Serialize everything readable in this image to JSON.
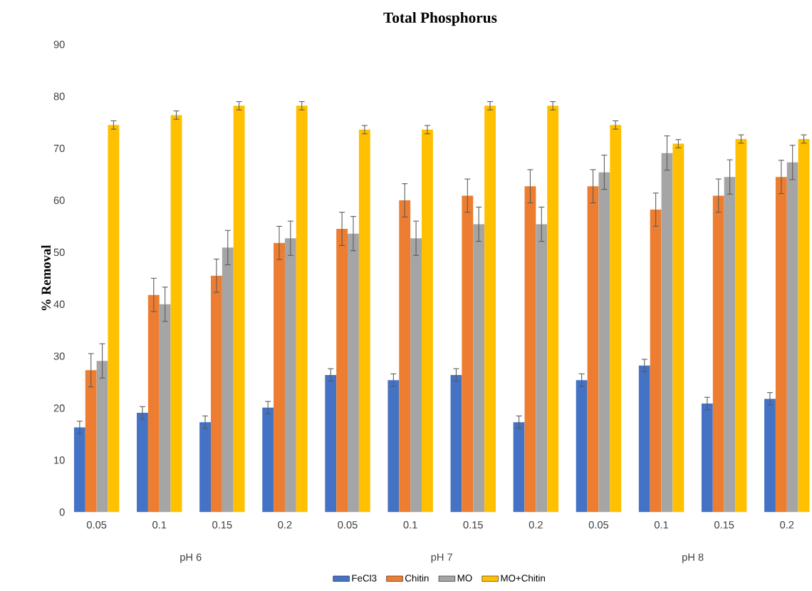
{
  "chart_data": {
    "type": "bar",
    "title": "Total Phosphorus",
    "ylabel": "% Removal",
    "categories": [
      "0.05",
      "0.1",
      "0.15",
      "0.2",
      "0.05",
      "0.1",
      "0.15",
      "0.2",
      "0.05",
      "0.1",
      "0.15",
      "0.2"
    ],
    "annotations": [
      "pH 6",
      "pH 7",
      "pH 8"
    ],
    "series": [
      {
        "name": "FeCl3",
        "color": "#4472c4",
        "values": [
          16.3,
          19.1,
          17.3,
          20.1,
          26.4,
          25.4,
          26.4,
          17.3,
          25.4,
          28.2,
          20.9,
          21.8
        ],
        "errors": [
          1.2,
          1.2,
          1.2,
          1.2,
          1.2,
          1.2,
          1.2,
          1.2,
          1.2,
          1.2,
          1.2,
          1.2
        ]
      },
      {
        "name": "Chitin",
        "color": "#ed7d31",
        "values": [
          27.3,
          41.8,
          45.5,
          51.8,
          54.5,
          60,
          60.9,
          62.7,
          62.7,
          58.2,
          60.9,
          64.5
        ],
        "errors": [
          3.2,
          3.2,
          3.2,
          3.2,
          3.2,
          3.2,
          3.2,
          3.2,
          3.2,
          3.2,
          3.2,
          3.2
        ]
      },
      {
        "name": "MO",
        "color": "#a5a5a5",
        "values": [
          29.1,
          40,
          50.9,
          52.7,
          53.6,
          52.7,
          55.4,
          55.4,
          65.4,
          69.1,
          64.5,
          67.3
        ],
        "errors": [
          3.3,
          3.3,
          3.3,
          3.3,
          3.3,
          3.3,
          3.3,
          3.3,
          3.3,
          3.3,
          3.3,
          3.3
        ]
      },
      {
        "name": "MO+Chitin",
        "color": "#ffc000",
        "values": [
          74.5,
          76.4,
          78.2,
          78.2,
          73.6,
          73.6,
          78.2,
          78.2,
          74.5,
          70.9,
          71.8,
          71.8
        ],
        "errors": [
          0.8,
          0.8,
          0.8,
          0.8,
          0.8,
          0.8,
          0.8,
          0.8,
          0.8,
          0.8,
          0.8,
          0.8
        ]
      }
    ],
    "ylim": [
      0,
      90
    ],
    "yticks": [
      0,
      10,
      20,
      30,
      40,
      50,
      60,
      70,
      80,
      90
    ],
    "legend": "bottom"
  }
}
